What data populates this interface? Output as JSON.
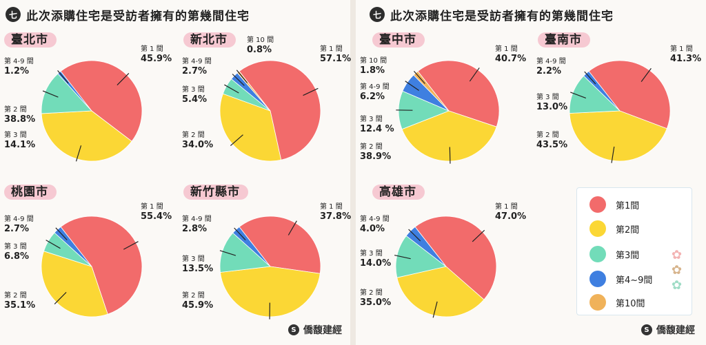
{
  "panels": [
    {
      "badge": "七",
      "title": "此次添購住宅是受訪者擁有的第幾間住宅",
      "footer": "僑馥建經"
    },
    {
      "badge": "七",
      "title": "此次添購住宅是受訪者擁有的第幾間住宅",
      "footer": "僑馥建經"
    }
  ],
  "legend": {
    "items": [
      {
        "label": "第1間",
        "color": "#f26b6b"
      },
      {
        "label": "第2間",
        "color": "#fbd735"
      },
      {
        "label": "第3間",
        "color": "#72dcb9"
      },
      {
        "label": "第4~9間",
        "color": "#3f7fe0"
      },
      {
        "label": "第10間",
        "color": "#f0b25a"
      }
    ]
  },
  "chart_data": [
    {
      "type": "pie",
      "city": "臺北市",
      "slices": [
        {
          "name": "第 1 間",
          "value": 45.9,
          "label": "45.9%"
        },
        {
          "name": "第 2 間",
          "value": 38.8,
          "label": "38.8%"
        },
        {
          "name": "第 3 間",
          "value": 14.1,
          "label": "14.1%"
        },
        {
          "name": "第 4-9 間",
          "value": 1.2,
          "label": "1.2%"
        }
      ]
    },
    {
      "type": "pie",
      "city": "新北市",
      "slices": [
        {
          "name": "第 1 間",
          "value": 57.1,
          "label": "57.1%"
        },
        {
          "name": "第 2 間",
          "value": 34.0,
          "label": "34.0%"
        },
        {
          "name": "第 3 間",
          "value": 5.4,
          "label": "5.4%"
        },
        {
          "name": "第 4-9 間",
          "value": 2.7,
          "label": "2.7%"
        },
        {
          "name": "第 10 間",
          "value": 0.8,
          "label": "0.8%"
        }
      ]
    },
    {
      "type": "pie",
      "city": "桃園市",
      "slices": [
        {
          "name": "第 1 間",
          "value": 55.4,
          "label": "55.4%"
        },
        {
          "name": "第 2 間",
          "value": 35.1,
          "label": "35.1%"
        },
        {
          "name": "第 3 間",
          "value": 6.8,
          "label": "6.8%"
        },
        {
          "name": "第 4-9 間",
          "value": 2.7,
          "label": "2.7%"
        }
      ]
    },
    {
      "type": "pie",
      "city": "新竹縣市",
      "slices": [
        {
          "name": "第 1 間",
          "value": 37.8,
          "label": "37.8%"
        },
        {
          "name": "第 2 間",
          "value": 45.9,
          "label": "45.9%"
        },
        {
          "name": "第 3 間",
          "value": 13.5,
          "label": "13.5%"
        },
        {
          "name": "第 4-9 間",
          "value": 2.8,
          "label": "2.8%"
        }
      ]
    },
    {
      "type": "pie",
      "city": "臺中市",
      "slices": [
        {
          "name": "第 1 間",
          "value": 40.7,
          "label": "40.7%"
        },
        {
          "name": "第 2 間",
          "value": 38.9,
          "label": "38.9%"
        },
        {
          "name": "第 3 間",
          "value": 12.4,
          "label": "12.4 %"
        },
        {
          "name": "第 4-9 間",
          "value": 6.2,
          "label": "6.2%"
        },
        {
          "name": "第 10 間",
          "value": 1.8,
          "label": "1.8%"
        }
      ]
    },
    {
      "type": "pie",
      "city": "臺南市",
      "slices": [
        {
          "name": "第 1 間",
          "value": 41.3,
          "label": "41.3%"
        },
        {
          "name": "第 2 間",
          "value": 43.5,
          "label": "43.5%"
        },
        {
          "name": "第 3 間",
          "value": 13.0,
          "label": "13.0%"
        },
        {
          "name": "第 4-9 間",
          "value": 2.2,
          "label": "2.2%"
        }
      ]
    },
    {
      "type": "pie",
      "city": "高雄市",
      "slices": [
        {
          "name": "第 1 間",
          "value": 47.0,
          "label": "47.0%"
        },
        {
          "name": "第 2 間",
          "value": 35.0,
          "label": "35.0%"
        },
        {
          "name": "第 3 間",
          "value": 14.0,
          "label": "14.0%"
        },
        {
          "name": "第 4-9 間",
          "value": 4.0,
          "label": "4.0%"
        }
      ]
    }
  ]
}
